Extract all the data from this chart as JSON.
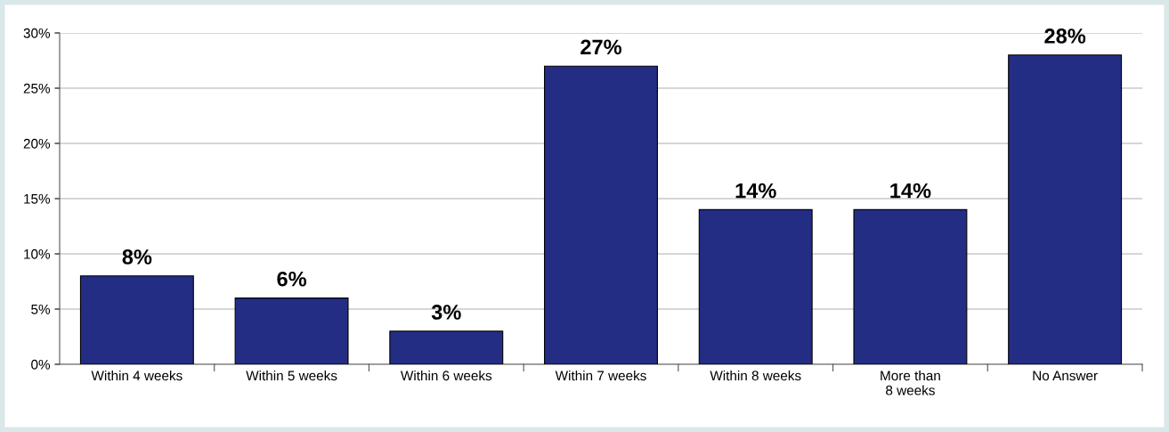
{
  "chart_data": {
    "type": "bar",
    "categories": [
      "Within 4 weeks",
      "Within 5 weeks",
      "Within 6 weeks",
      "Within 7 weeks",
      "Within 8 weeks",
      "More than\n8 weeks",
      "No Answer"
    ],
    "values": [
      8,
      6,
      3,
      27,
      14,
      14,
      28
    ],
    "value_labels": [
      "8%",
      "6%",
      "3%",
      "27%",
      "14%",
      "14%",
      "28%"
    ],
    "color": "#232d84",
    "ylim": [
      0,
      30
    ],
    "yticks": [
      {
        "value": 0,
        "label": "0%"
      },
      {
        "value": 5,
        "label": "5%"
      },
      {
        "value": 10,
        "label": "10%"
      },
      {
        "value": 15,
        "label": "15%"
      },
      {
        "value": 20,
        "label": "20%"
      },
      {
        "value": 25,
        "label": "25%"
      },
      {
        "value": 30,
        "label": "30%"
      }
    ],
    "grid": "y",
    "legend": false
  }
}
